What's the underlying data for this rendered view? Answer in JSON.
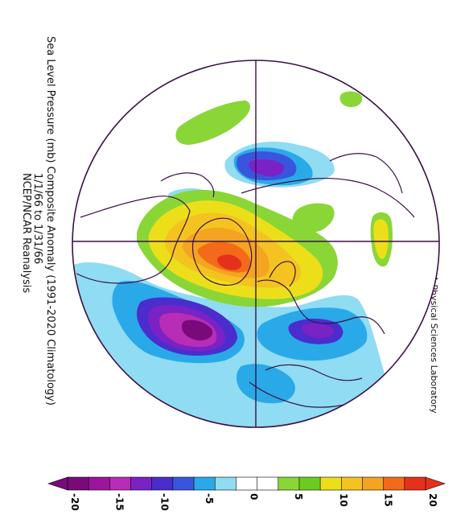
{
  "title": {
    "line1": "Sea Level Pressure (mb) Composite Anomaly (1991-2020 Climatology)",
    "line2": "1/1/66 to 1/31/66",
    "line3": "NCEP/NCAR Reanalysis"
  },
  "credit": "NOAA Physical Sciences Laboratory",
  "colorbar": {
    "tick_labels": [
      "-20",
      "-15",
      "-10",
      "-5",
      "0",
      "5",
      "10",
      "15",
      "20"
    ],
    "colors": [
      "#7a0a7a",
      "#9c159c",
      "#b82db5",
      "#7a22c6",
      "#4a2dcc",
      "#3a55dd",
      "#2aa9e8",
      "#8fdcf3",
      "#ffffff",
      "#ffffff",
      "#8ad637",
      "#6ccc1e",
      "#ecdf1a",
      "#f4c320",
      "#f4a420",
      "#f26a1a",
      "#e5301a"
    ]
  },
  "map_data": {
    "projection": "north-polar-stereographic",
    "variable": "sea level pressure anomaly (mb)",
    "anomalies": [
      {
        "region": "North Atlantic",
        "sign": "negative",
        "peak_mb": -18
      },
      {
        "region": "Greenland",
        "sign": "positive",
        "peak_mb": 16
      },
      {
        "region": "Europe / Mediterranean",
        "sign": "negative",
        "peak_mb": -10
      },
      {
        "region": "Northern Eurasia",
        "sign": "negative",
        "peak_mb": -9
      },
      {
        "region": "North Pacific",
        "sign": "positive",
        "peak_mb": 4
      }
    ]
  }
}
